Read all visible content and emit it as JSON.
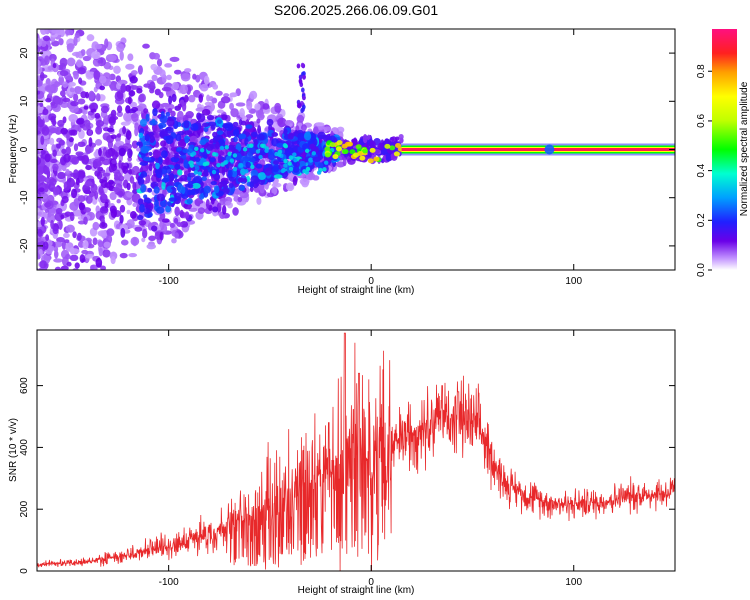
{
  "title": "S206.2025.266.06.09.G01",
  "chart_data": [
    {
      "type": "heatmap",
      "xlabel": "Height of straight line (km)",
      "ylabel": "Frequency (Hz)",
      "xlim": [
        -165,
        150
      ],
      "ylim": [
        -25,
        25
      ],
      "x_ticks": [
        -100,
        0,
        100
      ],
      "y_ticks": [
        -20,
        -10,
        0,
        10,
        20
      ],
      "colorbar": {
        "label": "Normalized spectral amplitude",
        "range": [
          0.0,
          0.97
        ],
        "ticks": [
          "0.0",
          "0.2",
          "0.4",
          "0.6",
          "0.8"
        ]
      },
      "ridge": {
        "x_start": 15,
        "x_end": 150,
        "frequency": 0,
        "amplitude": 0.95
      },
      "grid": false,
      "legend": "none"
    },
    {
      "type": "line",
      "xlabel": "Height of straight line (km)",
      "ylabel": "SNR (10 * v/v)",
      "xlim": [
        -165,
        150
      ],
      "ylim": [
        0,
        780
      ],
      "x_ticks": [
        -100,
        0,
        100
      ],
      "y_ticks": [
        0,
        200,
        400,
        600
      ],
      "color": "#e8282a",
      "envelope": [
        {
          "x": -165,
          "y": 20
        },
        {
          "x": -140,
          "y": 30
        },
        {
          "x": -120,
          "y": 50
        },
        {
          "x": -100,
          "y": 80
        },
        {
          "x": -80,
          "y": 120
        },
        {
          "x": -60,
          "y": 180
        },
        {
          "x": -45,
          "y": 230
        },
        {
          "x": -35,
          "y": 280
        },
        {
          "x": -25,
          "y": 310
        },
        {
          "x": -15,
          "y": 340
        },
        {
          "x": -10,
          "y": 380
        },
        {
          "x": 0,
          "y": 360
        },
        {
          "x": 10,
          "y": 400
        },
        {
          "x": 20,
          "y": 450
        },
        {
          "x": 30,
          "y": 490
        },
        {
          "x": 40,
          "y": 500
        },
        {
          "x": 50,
          "y": 480
        },
        {
          "x": 55,
          "y": 440
        },
        {
          "x": 60,
          "y": 360
        },
        {
          "x": 65,
          "y": 290
        },
        {
          "x": 75,
          "y": 250
        },
        {
          "x": 85,
          "y": 225
        },
        {
          "x": 100,
          "y": 215
        },
        {
          "x": 115,
          "y": 225
        },
        {
          "x": 130,
          "y": 245
        },
        {
          "x": 150,
          "y": 255
        }
      ],
      "peaks": [
        {
          "x": -13,
          "y": 770
        },
        {
          "x": -6,
          "y": 640
        },
        {
          "x": -21,
          "y": 480
        },
        {
          "x": 35,
          "y": 600
        },
        {
          "x": 43,
          "y": 580
        }
      ],
      "grid": false,
      "legend": "none"
    }
  ]
}
